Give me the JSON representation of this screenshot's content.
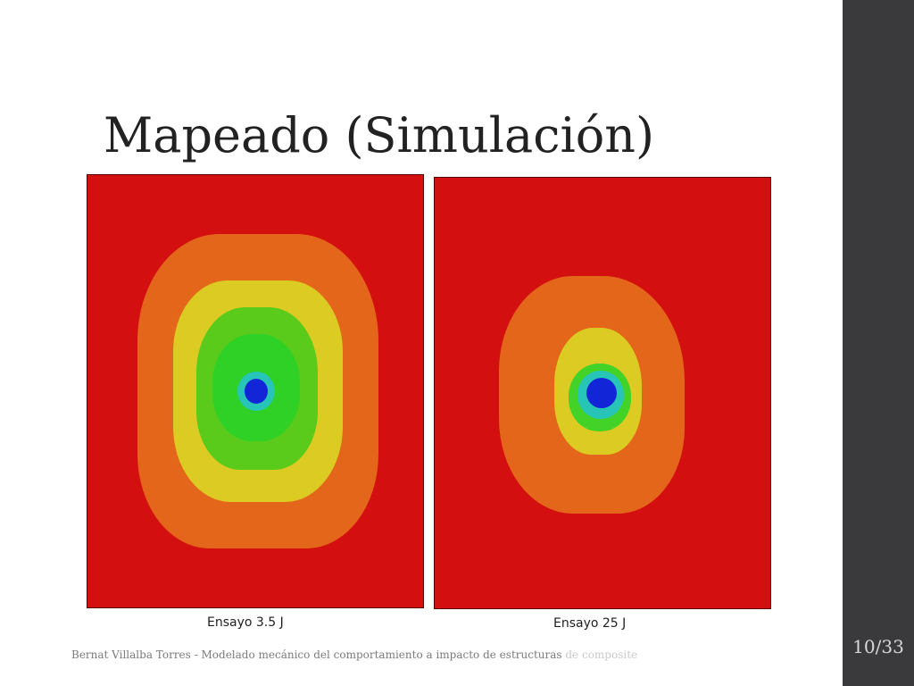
{
  "slide": {
    "title": "Mapeado (Simulación)",
    "page_number": "10/33"
  },
  "maps": [
    {
      "caption": "Ensayo 3.5 J"
    },
    {
      "caption": "Ensayo 25 J"
    }
  ],
  "footer": {
    "text_main": "Bernat Villalba Torres - Modelado mecánico del comportamiento a impacto de estructuras",
    "text_faded": "de composite"
  },
  "colors": {
    "sidebar": "#3a3a3c",
    "red": "#d40f10",
    "orange": "#e3661a",
    "yellow": "#dccb22",
    "green": "#39d11f",
    "cyan": "#27c5b7",
    "blue": "#1226d8"
  }
}
